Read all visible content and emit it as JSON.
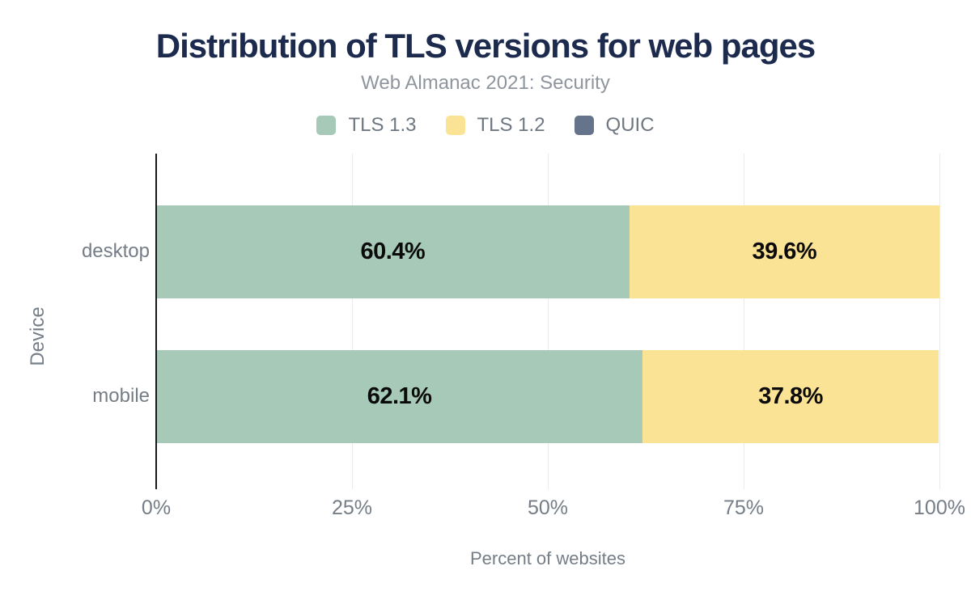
{
  "title": "Distribution of TLS versions for web pages",
  "subtitle": "Web Almanac 2021: Security",
  "legend": [
    {
      "label": "TLS 1.3",
      "color": "#a6c9b8"
    },
    {
      "label": "TLS 1.2",
      "color": "#fbe396"
    },
    {
      "label": "QUIC",
      "color": "#65748a"
    }
  ],
  "chart_data": {
    "type": "bar",
    "orientation": "horizontal",
    "stacked": true,
    "title": "Distribution of TLS versions for web pages",
    "subtitle": "Web Almanac 2021: Security",
    "categories": [
      "desktop",
      "mobile"
    ],
    "series": [
      {
        "name": "TLS 1.3",
        "color": "#a6c9b8",
        "values": [
          60.4,
          62.1
        ],
        "labels": [
          "60.4%",
          "62.1%"
        ]
      },
      {
        "name": "TLS 1.2",
        "color": "#fbe396",
        "values": [
          39.6,
          37.8
        ],
        "labels": [
          "39.6%",
          "37.8%"
        ]
      },
      {
        "name": "QUIC",
        "color": "#65748a",
        "values": [
          0,
          0
        ],
        "labels": [
          "",
          ""
        ]
      }
    ],
    "xlabel": "Percent of websites",
    "ylabel": "Device",
    "x_ticks": [
      "0%",
      "25%",
      "50%",
      "75%",
      "100%"
    ],
    "xlim": [
      0,
      100
    ],
    "grid": true,
    "legend_position": "top"
  },
  "colors": {
    "title_text": "#1c2b4d",
    "subtitle_text": "#8f959d",
    "legend_text": "#6f7781",
    "axis_text": "#757d87",
    "gridline": "#e9ebee",
    "axis_line": "#17191c",
    "bar_value_text": "#0b0b0b",
    "background": "#ffffff"
  }
}
